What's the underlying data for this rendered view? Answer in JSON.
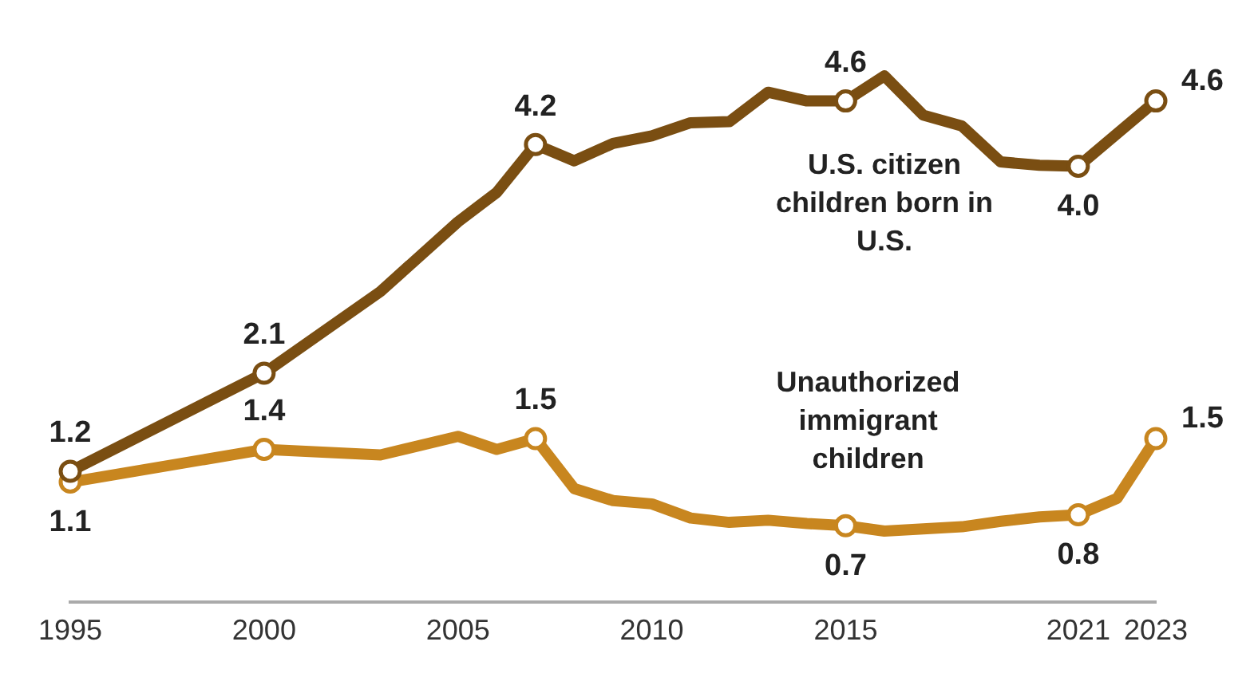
{
  "chart_data": {
    "type": "line",
    "x": [
      1995,
      2000,
      2003,
      2005,
      2006,
      2007,
      2008,
      2009,
      2010,
      2011,
      2012,
      2013,
      2014,
      2015,
      2016,
      2017,
      2018,
      2019,
      2020,
      2021,
      2022,
      2023
    ],
    "series": [
      {
        "name": "U.S. citizen children born in U.S.",
        "color": "#7a4e12",
        "values": [
          1.2,
          2.1,
          2.85,
          3.49,
          3.76,
          4.2,
          4.05,
          4.21,
          4.28,
          4.4,
          4.41,
          4.68,
          4.6,
          4.6,
          4.83,
          4.47,
          4.37,
          4.04,
          4.01,
          4.0,
          4.3,
          4.6
        ],
        "value_labels": [
          "1.2",
          "2.1",
          null,
          null,
          null,
          "4.2",
          null,
          null,
          null,
          null,
          null,
          null,
          null,
          "4.6",
          null,
          null,
          null,
          null,
          null,
          "4.0",
          null,
          "4.6"
        ]
      },
      {
        "name": "Unauthorized immigrant children",
        "color": "#c8861f",
        "values": [
          1.1,
          1.4,
          1.35,
          1.52,
          1.4,
          1.5,
          1.04,
          0.93,
          0.9,
          0.77,
          0.73,
          0.75,
          0.72,
          0.7,
          0.65,
          0.67,
          0.69,
          0.74,
          0.78,
          0.8,
          0.95,
          1.5
        ],
        "value_labels": [
          "1.1",
          "1.4",
          null,
          null,
          null,
          "1.5",
          null,
          null,
          null,
          null,
          null,
          null,
          null,
          "0.7",
          null,
          null,
          null,
          null,
          null,
          "0.8",
          null,
          "1.5"
        ]
      }
    ],
    "xlim": [
      1995,
      2023
    ],
    "xticks": [
      1995,
      2000,
      2005,
      2010,
      2015,
      2021,
      2023
    ],
    "tick_labels": "x",
    "grid": false,
    "legend": false,
    "line_style": "solid"
  }
}
